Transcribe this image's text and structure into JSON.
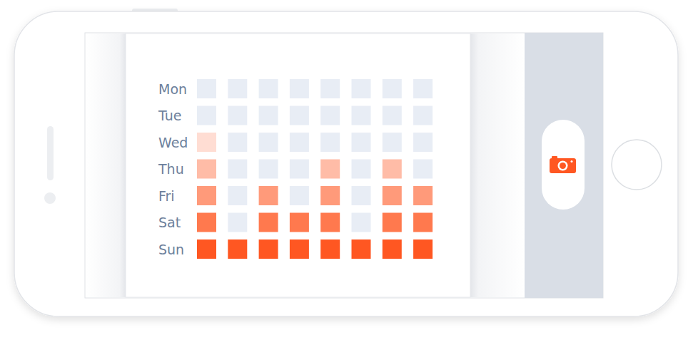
{
  "chart_data": {
    "type": "heatmap",
    "y_categories": [
      "Mon",
      "Tue",
      "Wed",
      "Thu",
      "Fri",
      "Sat",
      "Sun"
    ],
    "x_categories": [
      null,
      null,
      null,
      null,
      null,
      null,
      null,
      null
    ],
    "cells": [
      [
        0,
        0,
        0,
        0,
        0,
        0,
        0,
        0
      ],
      [
        0,
        0,
        0,
        0,
        0,
        0,
        0,
        0
      ],
      [
        1,
        0,
        0,
        0,
        0,
        0,
        0,
        0
      ],
      [
        2,
        0,
        0,
        0,
        2,
        0,
        2,
        0
      ],
      [
        3,
        0,
        3,
        0,
        3,
        0,
        3,
        3
      ],
      [
        4,
        0,
        4,
        4,
        4,
        0,
        4,
        4
      ],
      [
        5,
        5,
        5,
        5,
        5,
        5,
        5,
        5
      ]
    ],
    "clim": [
      0,
      5
    ],
    "color": "#ff5722",
    "tick_labels": "y"
  }
}
